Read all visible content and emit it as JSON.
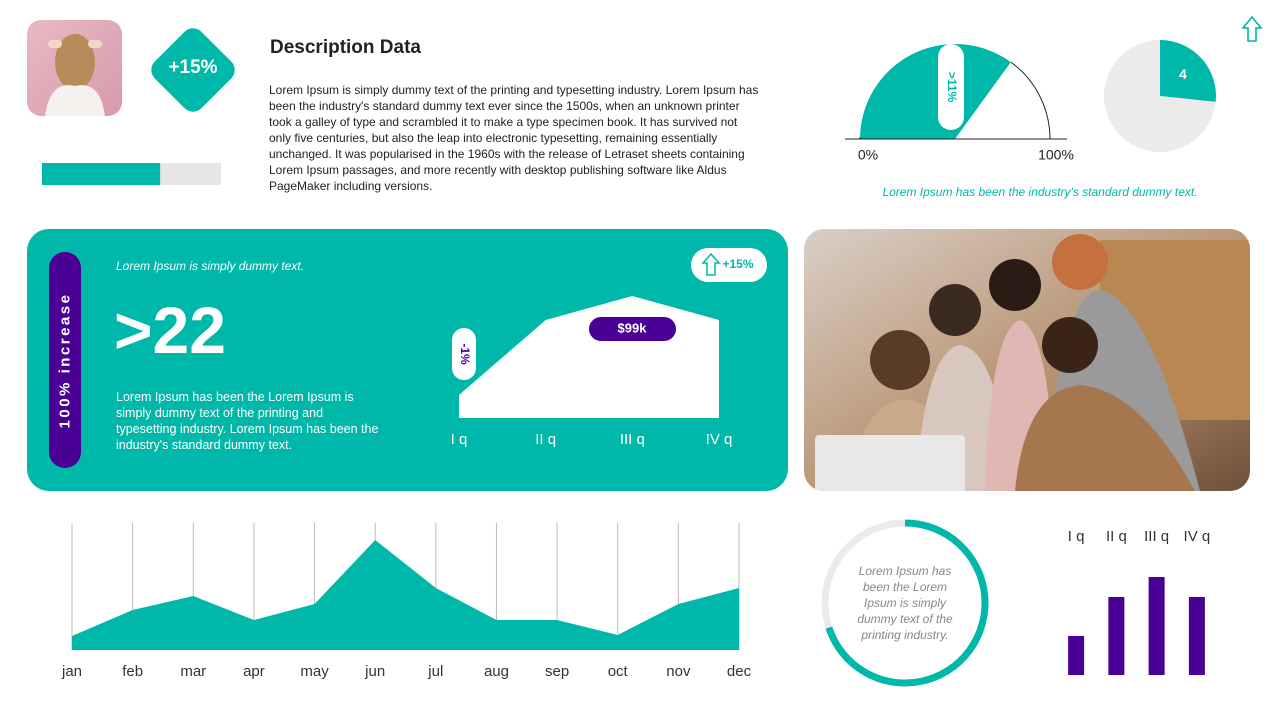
{
  "header": {
    "badge": "+15%",
    "title": "Description Data",
    "body": "Lorem Ipsum is simply dummy text of the printing and typesetting industry. Lorem Ipsum has been the industry's standard dummy text ever since the 1500s, when an unknown printer took a galley of type and scrambled it to make a type specimen book. It has survived not only five centuries, but also the leap into electronic typesetting, remaining essentially unchanged. It was popularised in the 1960s with the release of Letraset sheets containing Lorem Ipsum passages, and more recently with desktop publishing software like Aldus PageMaker including versions."
  },
  "caption": "Lorem Ipsum has been the industry's standard dummy text.",
  "card": {
    "pill": "100% increase",
    "lead": "Lorem Ipsum is simply dummy text.",
    "big": ">22",
    "body": "Lorem Ipsum has been the Lorem Ipsum is simply dummy text of the printing and typesetting industry. Lorem Ipsum has been the industry's standard dummy text."
  },
  "chart_data": [
    {
      "type": "progress",
      "value": 66,
      "xlim": [
        0,
        100
      ],
      "color": "#00b8a9"
    },
    {
      "type": "gauge",
      "value": 70,
      "xlim": [
        0,
        100
      ],
      "xticks": [
        {
          "value": 0,
          "label": "0%"
        },
        {
          "value": 100,
          "label": "100%"
        }
      ],
      "annotation": ">11%",
      "color": "#00b8a9"
    },
    {
      "type": "pie",
      "values": [
        4,
        11
      ],
      "colors": [
        "#00b8a9",
        "#ebebeb"
      ]
    },
    {
      "type": "area",
      "categories": [
        "I q",
        "II q",
        "III q",
        "IV q"
      ],
      "values": [
        23,
        98,
        122,
        98
      ],
      "ylim": [
        0,
        130
      ],
      "color": "#ffffff",
      "annotations": [
        "-1%",
        "$99k",
        "+15%"
      ]
    },
    {
      "type": "area",
      "categories": [
        "jan",
        "feb",
        "mar",
        "apr",
        "may",
        "jun",
        "jul",
        "aug",
        "sep",
        "oct",
        "nov",
        "dec"
      ],
      "values": [
        14,
        40,
        54,
        30,
        46,
        110,
        62,
        30,
        30,
        15,
        46,
        62
      ],
      "ylim": [
        0,
        127
      ],
      "color": "#00b8a9",
      "grid": true
    },
    {
      "type": "donut",
      "value": 70,
      "xlim": [
        0,
        100
      ],
      "color": "#00b8a9",
      "text": "Lorem Ipsum has been the Lorem Ipsum is simply dummy text of the printing industry."
    },
    {
      "type": "bar",
      "categories": [
        "I q",
        "II q",
        "III q",
        "IV q"
      ],
      "values": [
        39,
        78,
        98,
        78
      ],
      "ylim": [
        0,
        100
      ],
      "color": "#4b0095"
    }
  ]
}
